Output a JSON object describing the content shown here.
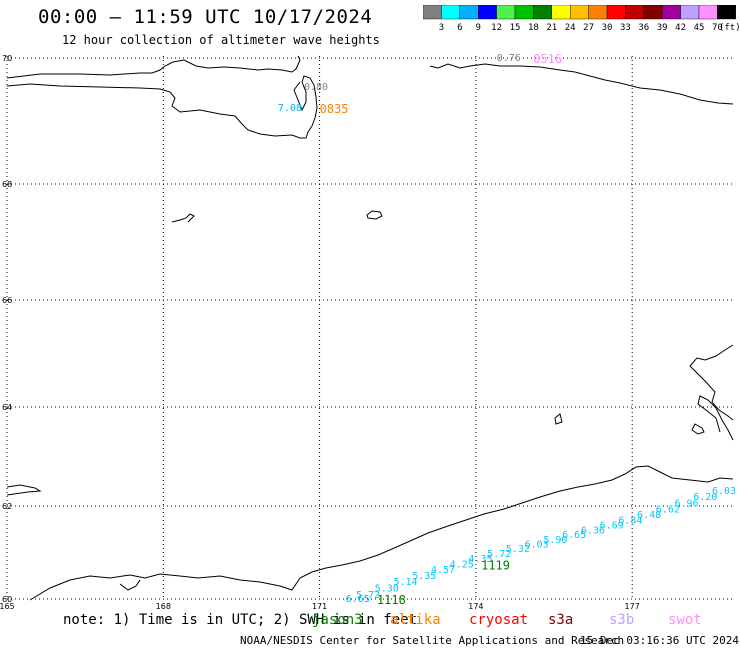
{
  "header": {
    "title": "00:00 – 11:59 UTC 10/17/2024",
    "subtitle": "12 hour collection of altimeter wave heights"
  },
  "colorbar": {
    "labels": [
      "3",
      "6",
      "9",
      "12",
      "15",
      "18",
      "21",
      "24",
      "27",
      "30",
      "33",
      "36",
      "39",
      "42",
      "45",
      "70"
    ],
    "unit": "(ft)",
    "colors": [
      "#808080",
      "#00ffff",
      "#00b0ff",
      "#0000ff",
      "#50f050",
      "#00c000",
      "#008000",
      "#ffff00",
      "#ffc000",
      "#ff8000",
      "#ff0000",
      "#c00000",
      "#800000",
      "#a000a0",
      "#c0a0ff",
      "#ff90ff",
      "#000000"
    ]
  },
  "map": {
    "lat_labels": [
      "70",
      "68",
      "66",
      "64",
      "62",
      "60"
    ],
    "lon_labels": [
      "165",
      "168",
      "171",
      "174",
      "177"
    ],
    "annotations": [
      {
        "text": "0.76",
        "color": "#808080",
        "lon": 174.4,
        "lat": 70.0
      },
      {
        "text": "0516",
        "color": "#ff90ff",
        "lon": 175.1,
        "lat": 70.0
      },
      {
        "text": "0.80",
        "color": "#808080",
        "lon": 170.7,
        "lat": 69.54
      },
      {
        "text": "7.08",
        "color": "#00b0ff",
        "lon": 170.2,
        "lat": 69.21
      },
      {
        "text": "0835",
        "color": "#ff8000",
        "lon": 171.0,
        "lat": 69.21
      },
      {
        "text": "6.65",
        "color": "#00b0ff",
        "lon": 171.5,
        "lat": 59.95
      },
      {
        "text": "1118",
        "color": "#008000",
        "lon": 172.1,
        "lat": 59.95
      },
      {
        "text": "1119",
        "color": "#008000",
        "lon": 174.1,
        "lat": 60.74
      }
    ],
    "track_values": [
      "5.72",
      "5.30",
      "5.14",
      "5.35",
      "4.57",
      "4.25",
      "4.35",
      "5.72",
      "5.32",
      "6.03",
      "5.90",
      "6.65",
      "6.36",
      "6.69",
      "6.84",
      "6.48",
      "6.62",
      "6.96",
      "6.20",
      "6.03"
    ],
    "track_color": "#00c8ff"
  },
  "legend": {
    "note": "note: 1) Time is in UTC; 2) SWH is in feet",
    "satellites": [
      {
        "name": "jason3",
        "color": "#008000"
      },
      {
        "name": "altika",
        "color": "#ff8000"
      },
      {
        "name": "cryosat",
        "color": "#ff0000"
      },
      {
        "name": "s3a",
        "color": "#800000"
      },
      {
        "name": "s3b",
        "color": "#c0a0ff"
      },
      {
        "name": "swot",
        "color": "#ff90ff"
      }
    ]
  },
  "footer": {
    "credit": "NOAA/NESDIS Center for Satellite Applications and Research",
    "timestamp": "15 Dec 03:16:36 UTC 2024"
  }
}
